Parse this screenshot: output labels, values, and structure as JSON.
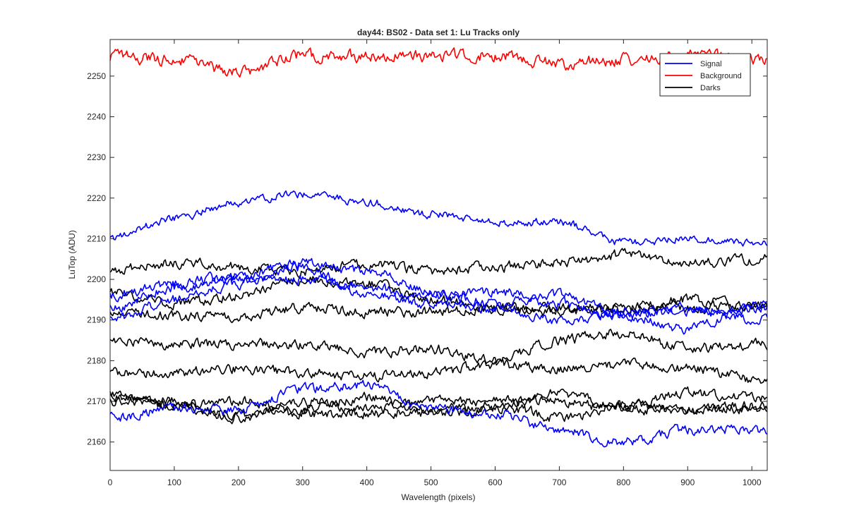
{
  "chart_data": {
    "type": "line",
    "title": "day44: BS02 - Data set 1: Lu Tracks only",
    "xlabel": "Wavelength (pixels)",
    "ylabel": "LuTop (ADU)",
    "xlim": [
      0,
      1024
    ],
    "ylim": [
      2153,
      2259
    ],
    "x_ticks": [
      0,
      100,
      200,
      300,
      400,
      500,
      600,
      700,
      800,
      900,
      1000
    ],
    "y_ticks": [
      2160,
      2170,
      2180,
      2190,
      2200,
      2210,
      2220,
      2230,
      2240,
      2250
    ],
    "grid": false,
    "legend_position": "top-right",
    "legend": [
      {
        "label": "Signal",
        "color": "#0000ff"
      },
      {
        "label": "Background",
        "color": "#ff0000"
      },
      {
        "label": "Darks",
        "color": "#000000"
      }
    ],
    "x_knots": [
      0,
      100,
      200,
      300,
      400,
      500,
      600,
      700,
      800,
      900,
      1024
    ],
    "series": [
      {
        "name": "Background",
        "group": "Background",
        "color": "#ff0000",
        "noise": 1.2,
        "seed": 11,
        "values": [
          2255,
          2254,
          2251,
          2255,
          2255,
          2255,
          2255,
          2253,
          2254,
          2255,
          2254
        ]
      },
      {
        "name": "Signal 1",
        "group": "Signal",
        "color": "#0000ff",
        "noise": 0.8,
        "seed": 21,
        "values": [
          2210,
          2215,
          2219,
          2221,
          2219,
          2216,
          2214,
          2214,
          2209,
          2210,
          2209
        ]
      },
      {
        "name": "Signal 2",
        "group": "Signal",
        "color": "#0000ff",
        "noise": 1.0,
        "seed": 22,
        "values": [
          2196,
          2199,
          2201,
          2204,
          2202,
          2197,
          2194,
          2196,
          2191,
          2192,
          2193
        ]
      },
      {
        "name": "Signal 3",
        "group": "Signal",
        "color": "#0000ff",
        "noise": 1.0,
        "seed": 23,
        "values": [
          2193,
          2198,
          2200,
          2200,
          2198,
          2196,
          2197,
          2194,
          2191,
          2188,
          2194
        ]
      },
      {
        "name": "Signal 4",
        "group": "Signal",
        "color": "#0000ff",
        "noise": 1.0,
        "seed": 24,
        "values": [
          2190,
          2195,
          2199,
          2203,
          2196,
          2194,
          2193,
          2190,
          2192,
          2193,
          2190
        ]
      },
      {
        "name": "Signal 5",
        "group": "Signal",
        "color": "#0000ff",
        "noise": 1.0,
        "seed": 25,
        "values": [
          2166,
          2168,
          2168,
          2173,
          2174,
          2168,
          2167,
          2163,
          2160,
          2163,
          2163
        ]
      },
      {
        "name": "Darks 1",
        "group": "Darks",
        "color": "#000000",
        "noise": 1.0,
        "seed": 31,
        "values": [
          2202,
          2204,
          2203,
          2202,
          2204,
          2202,
          2203,
          2204,
          2206,
          2204,
          2205
        ]
      },
      {
        "name": "Darks 2",
        "group": "Darks",
        "color": "#000000",
        "noise": 1.0,
        "seed": 32,
        "values": [
          2197,
          2194,
          2196,
          2200,
          2199,
          2195,
          2193,
          2193,
          2193,
          2195,
          2193
        ]
      },
      {
        "name": "Darks 3",
        "group": "Darks",
        "color": "#000000",
        "noise": 1.0,
        "seed": 33,
        "values": [
          2192,
          2191,
          2191,
          2193,
          2192,
          2192,
          2193,
          2192,
          2193,
          2193,
          2193
        ]
      },
      {
        "name": "Darks 4",
        "group": "Darks",
        "color": "#000000",
        "noise": 1.0,
        "seed": 34,
        "values": [
          2185,
          2184,
          2184,
          2184,
          2182,
          2183,
          2180,
          2185,
          2187,
          2183,
          2184
        ]
      },
      {
        "name": "Darks 5",
        "group": "Darks",
        "color": "#000000",
        "noise": 1.0,
        "seed": 35,
        "values": [
          2177,
          2177,
          2178,
          2177,
          2176,
          2177,
          2179,
          2178,
          2179,
          2178,
          2175
        ]
      },
      {
        "name": "Darks 6",
        "group": "Darks",
        "color": "#000000",
        "noise": 1.0,
        "seed": 36,
        "values": [
          2172,
          2169,
          2170,
          2168,
          2171,
          2167,
          2168,
          2172,
          2169,
          2172,
          2171
        ]
      },
      {
        "name": "Darks 7",
        "group": "Darks",
        "color": "#000000",
        "noise": 1.0,
        "seed": 37,
        "values": [
          2170,
          2169,
          2167,
          2167,
          2167,
          2168,
          2169,
          2166,
          2169,
          2168,
          2168
        ]
      },
      {
        "name": "Darks 8",
        "group": "Darks",
        "color": "#000000",
        "noise": 1.0,
        "seed": 38,
        "values": [
          2171,
          2170,
          2166,
          2170,
          2168,
          2170,
          2170,
          2170,
          2168,
          2168,
          2169
        ]
      }
    ]
  }
}
